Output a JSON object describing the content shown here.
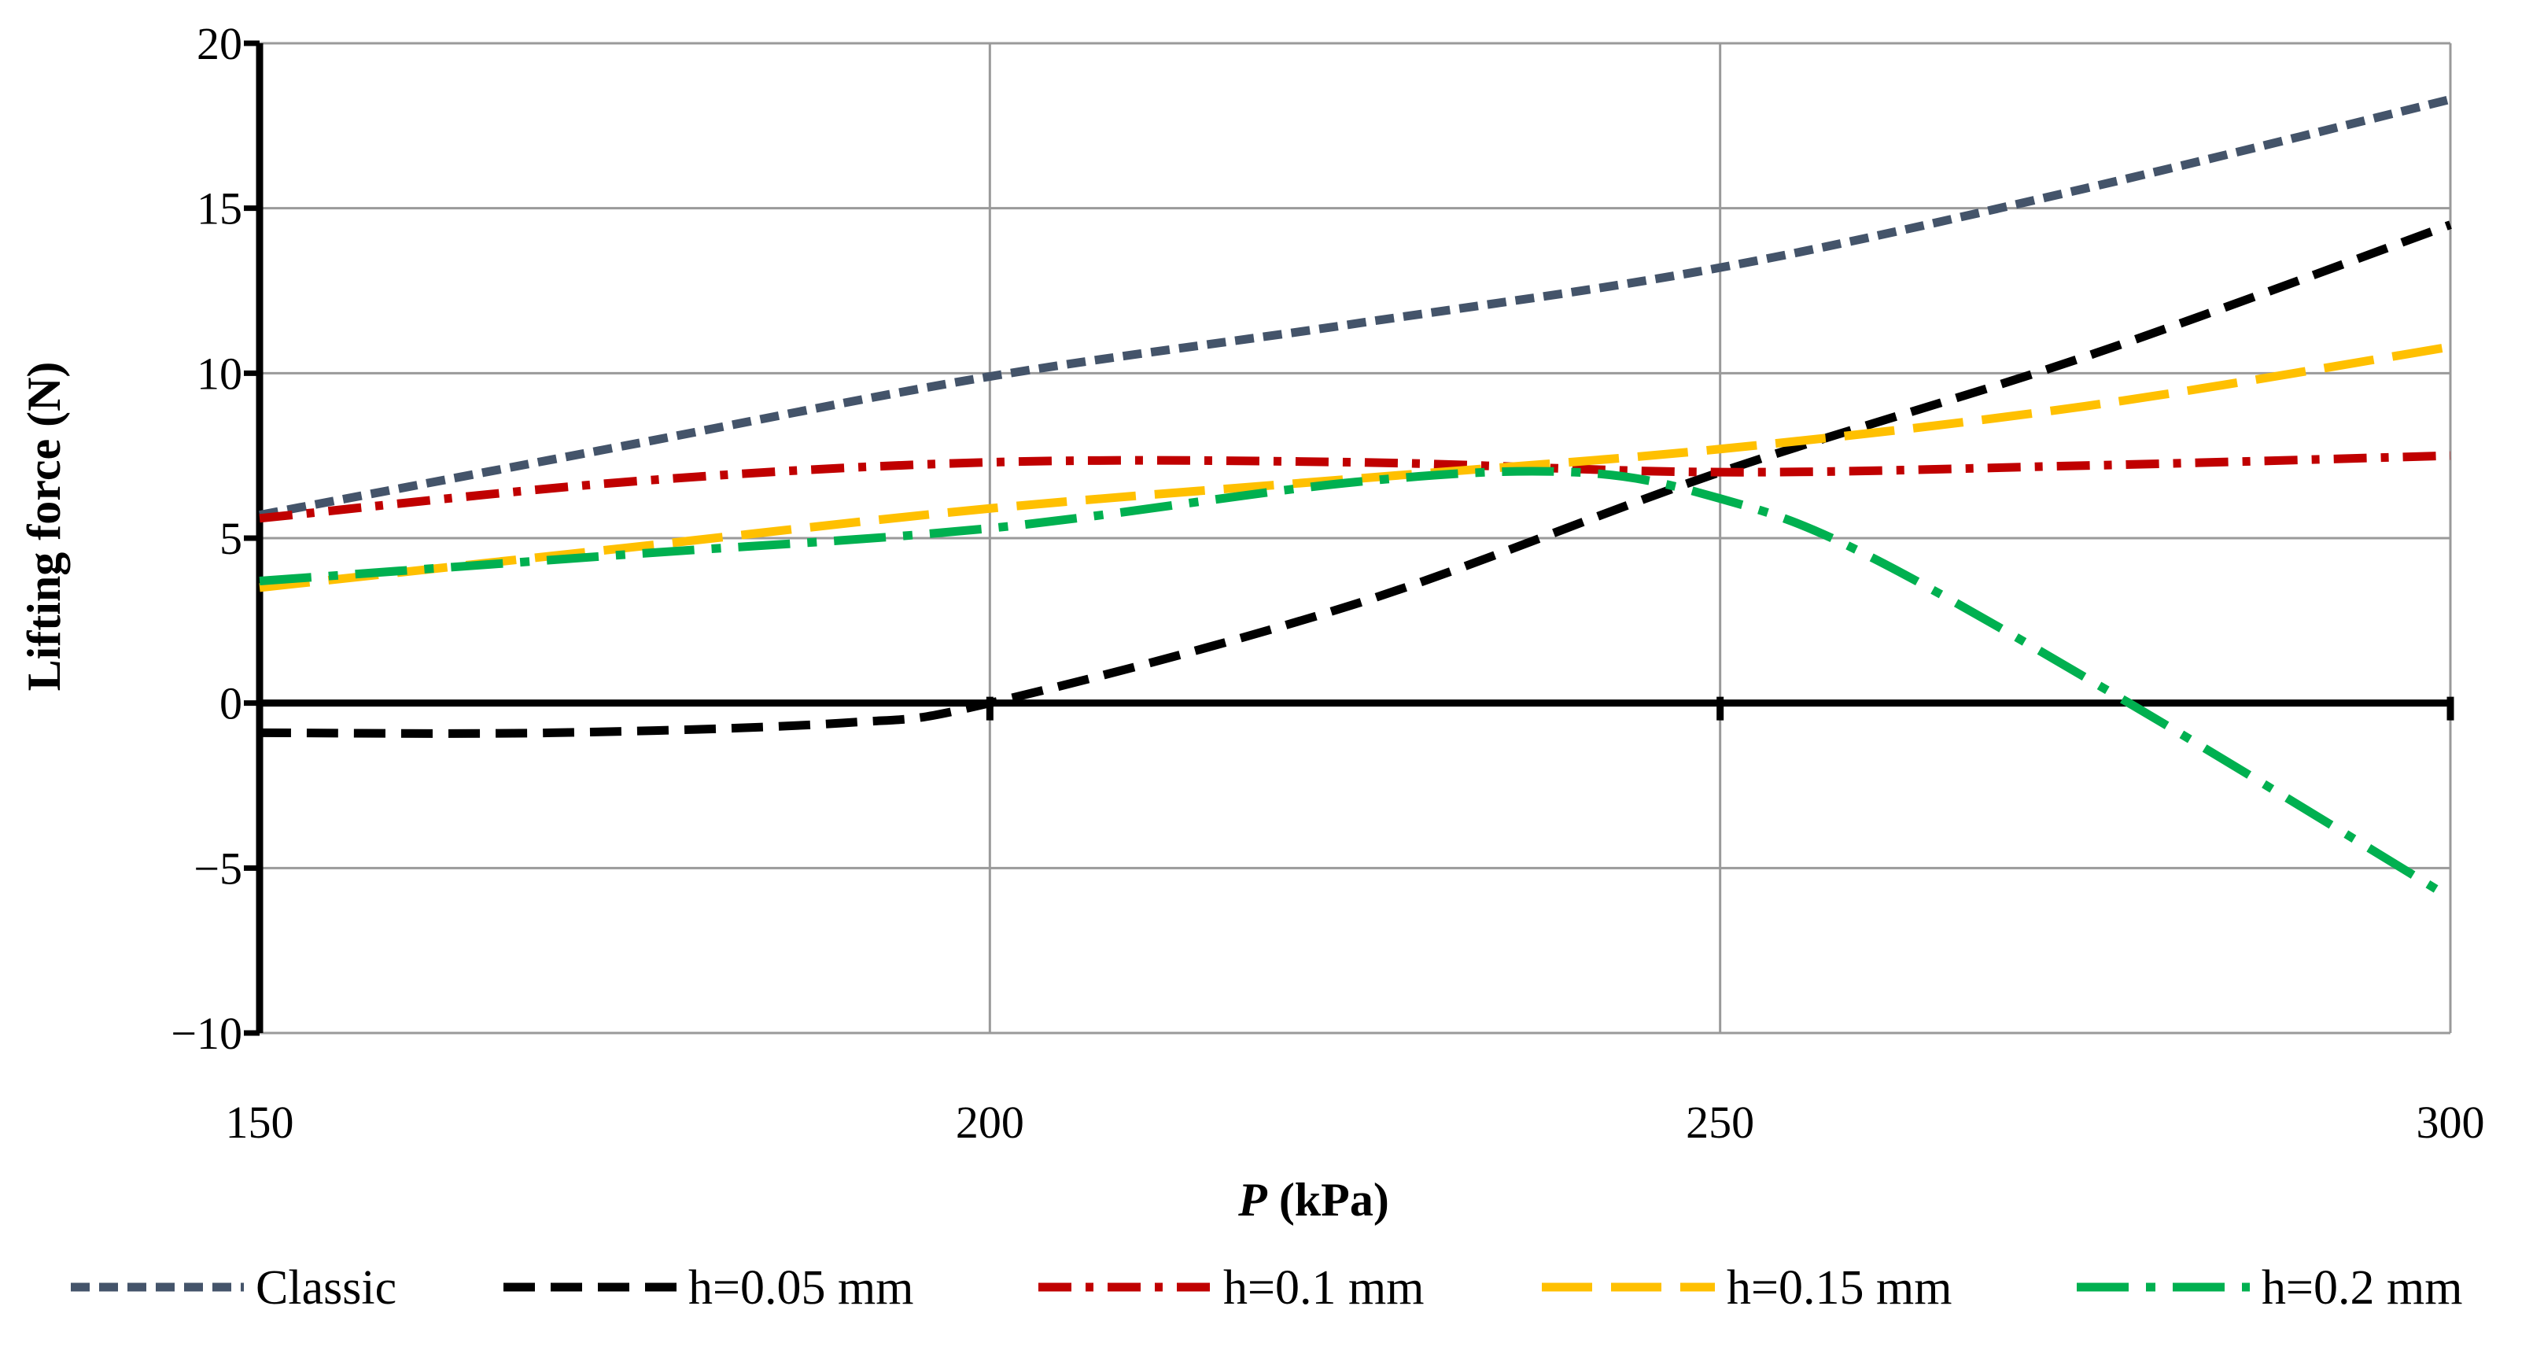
{
  "chart_data": {
    "type": "line",
    "title": "",
    "xlabel_italic": "P",
    "xlabel_rest": " (kPa)",
    "ylabel": "Lifting force (N)",
    "xlim": [
      150,
      300
    ],
    "ylim": [
      -10,
      20
    ],
    "x_ticks": [
      150,
      200,
      250,
      300
    ],
    "x_tick_labels": [
      "150",
      "200",
      "250",
      "300"
    ],
    "y_ticks": [
      -10,
      -5,
      0,
      5,
      10,
      15,
      20
    ],
    "y_tick_labels": [
      "−10",
      "−5",
      "0",
      "5",
      "10",
      "15",
      "20"
    ],
    "grid": true,
    "legend_position": "bottom",
    "series": [
      {
        "name": "Classic",
        "color": "#44546A",
        "dash": "short-dash",
        "x": [
          150,
          175,
          200,
          225,
          250,
          275,
          300
        ],
        "y": [
          5.7,
          7.8,
          9.9,
          11.5,
          13.2,
          15.6,
          18.3
        ]
      },
      {
        "name": "h=0.05 mm",
        "color": "#000000",
        "dash": "dash",
        "x": [
          150,
          170,
          190,
          200,
          225,
          250,
          275,
          300
        ],
        "y": [
          -0.9,
          -0.9,
          -0.6,
          0.0,
          3.0,
          7.0,
          10.5,
          14.5
        ]
      },
      {
        "name": "h=0.1 mm",
        "color": "#C00000",
        "dash": "dash-dot",
        "x": [
          150,
          175,
          200,
          225,
          250,
          275,
          300
        ],
        "y": [
          5.6,
          6.7,
          7.3,
          7.3,
          7.0,
          7.2,
          7.5
        ]
      },
      {
        "name": "h=0.15 mm",
        "color": "#FFC000",
        "dash": "long-dash",
        "x": [
          150,
          175,
          200,
          225,
          250,
          275,
          300
        ],
        "y": [
          3.5,
          4.7,
          5.9,
          6.8,
          7.7,
          9.0,
          10.8
        ]
      },
      {
        "name": "h=0.2 mm",
        "color": "#00B050",
        "dash": "long-dash-dot",
        "x": [
          150,
          175,
          200,
          225,
          240,
          250,
          260,
          278,
          300
        ],
        "y": [
          3.7,
          4.5,
          5.3,
          6.7,
          7.0,
          6.2,
          4.5,
          0.0,
          -5.9
        ]
      }
    ]
  }
}
